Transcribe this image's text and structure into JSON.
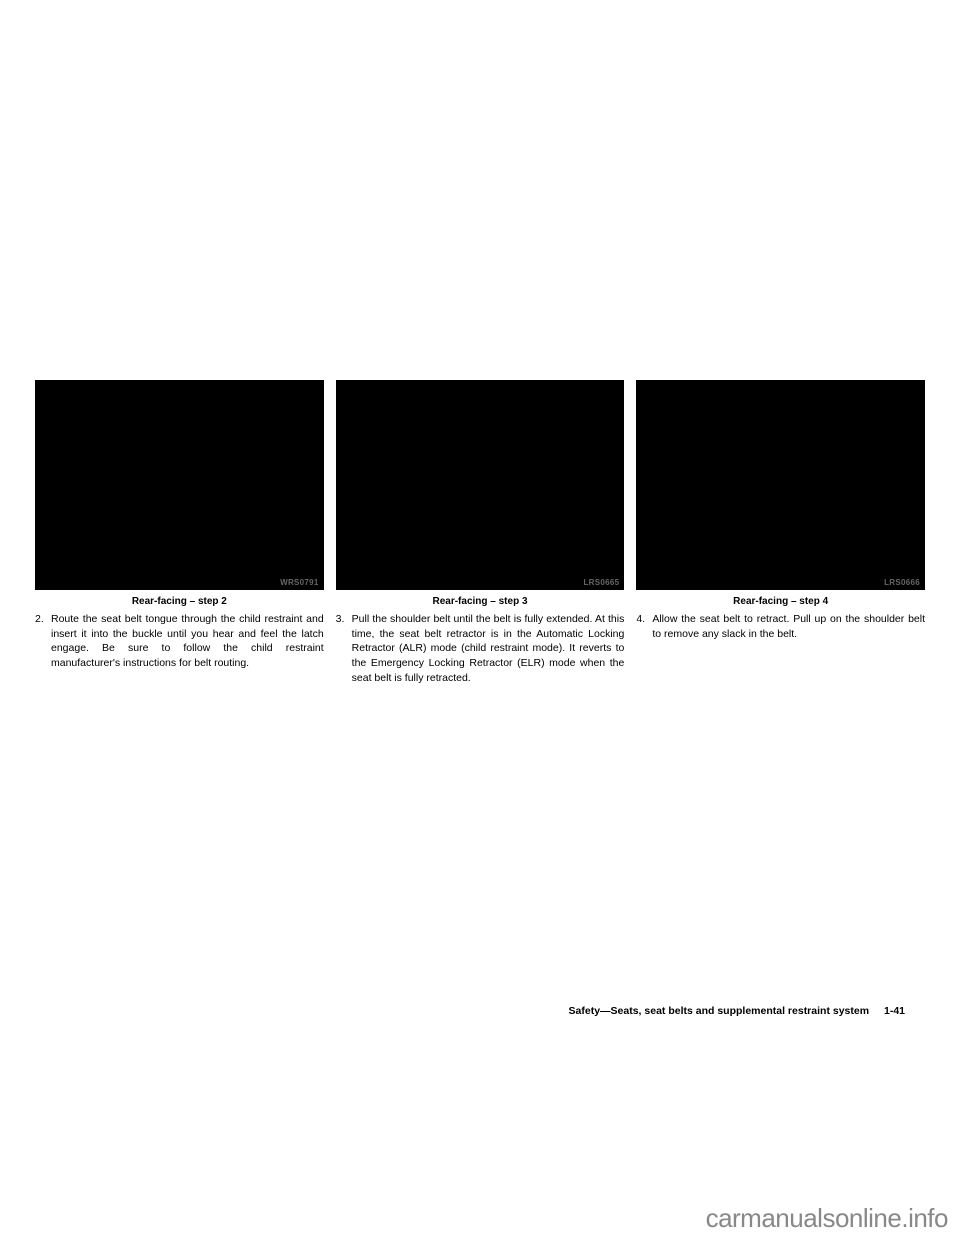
{
  "columns": [
    {
      "image_code": "WRS0791",
      "caption": "Rear-facing – step 2",
      "step_number": "2.",
      "step_text": "Route the seat belt tongue through the child restraint and insert it into the buckle until you hear and feel the latch engage. Be sure to follow the child restraint manufacturer's instructions for belt routing."
    },
    {
      "image_code": "LRS0665",
      "caption": "Rear-facing – step 3",
      "step_number": "3.",
      "step_text": "Pull the shoulder belt until the belt is fully extended. At this time, the seat belt retractor is in the Automatic Locking Retractor (ALR) mode (child restraint mode). It reverts to the Emergency Locking Retractor (ELR) mode when the seat belt is fully retracted."
    },
    {
      "image_code": "LRS0666",
      "caption": "Rear-facing – step 4",
      "step_number": "4.",
      "step_text": "Allow the seat belt to retract. Pull up on the shoulder belt to remove any slack in the belt."
    }
  ],
  "footer": {
    "section_title": "Safety—Seats, seat belts and supplemental restraint system",
    "page_number": "1-41"
  },
  "watermark": "carmanualsonline.info"
}
